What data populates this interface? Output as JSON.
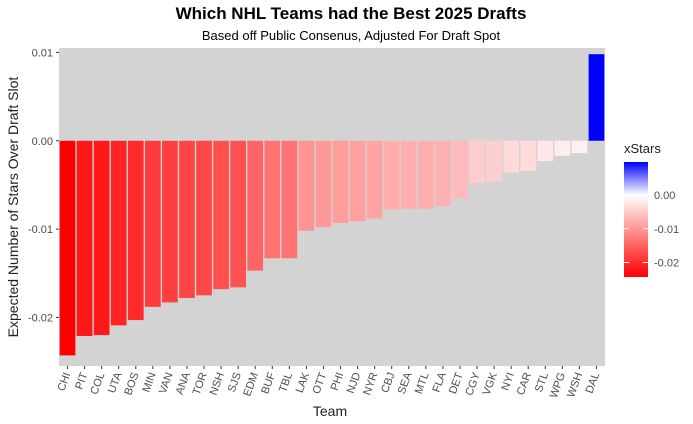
{
  "chart_data": {
    "type": "bar",
    "title": "Which NHL Teams had the Best 2025 Drafts",
    "subtitle": "Based off Public Consenus, Adjusted For Draft Spot",
    "xlabel": "Team",
    "ylabel": "Expected Number of Stars Over Draft Slot",
    "ylim": [
      -0.0255,
      0.0105
    ],
    "yticks": [
      0.01,
      0.0,
      -0.01,
      -0.02
    ],
    "ytick_labels": [
      "0.01",
      "0.00",
      "-0.01",
      "-0.02"
    ],
    "categories": [
      "CHI",
      "PIT",
      "COL",
      "UTA",
      "BOS",
      "MIN",
      "VAN",
      "ANA",
      "TOR",
      "NSH",
      "SJS",
      "EDM",
      "BUF",
      "TBL",
      "LAK",
      "OTT",
      "PHI",
      "NJD",
      "NYR",
      "CBJ",
      "SEA",
      "MTL",
      "FLA",
      "DET",
      "CGY",
      "VGK",
      "NYI",
      "CAR",
      "STL",
      "WPG",
      "WSH",
      "DAL"
    ],
    "values": [
      -0.0243,
      -0.0221,
      -0.022,
      -0.0209,
      -0.0203,
      -0.0188,
      -0.0183,
      -0.0178,
      -0.0175,
      -0.0168,
      -0.0166,
      -0.0147,
      -0.0133,
      -0.0133,
      -0.0102,
      -0.0098,
      -0.0093,
      -0.0091,
      -0.0088,
      -0.0078,
      -0.0077,
      -0.0077,
      -0.0074,
      -0.0065,
      -0.0048,
      -0.0046,
      -0.0036,
      -0.0034,
      -0.0023,
      -0.0017,
      -0.0014,
      0.0098
    ],
    "grid": false,
    "legend": {
      "title": "xStars",
      "position": "right",
      "ticks": [
        0.0,
        -0.01,
        -0.02
      ],
      "tick_labels": [
        "0.00",
        "-0.01",
        "-0.02"
      ],
      "range": [
        -0.0243,
        0.0098
      ],
      "colors": {
        "low": "#ff0000",
        "mid": "#ffffff",
        "high": "#0000ff"
      }
    },
    "panel_background": "#d3d3d3"
  }
}
